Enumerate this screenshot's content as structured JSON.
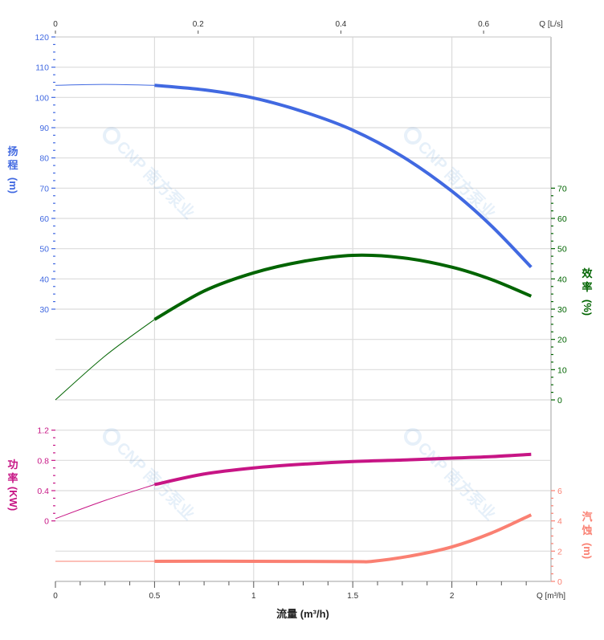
{
  "chart_data": {
    "type": "line",
    "watermark": "CNP 南方泵业",
    "x": {
      "label": "流量 (m³/h)",
      "unit_label": "Q [m³/h]",
      "range": [
        0,
        2.5
      ],
      "ticks": [
        "0",
        "0.5",
        "1",
        "1.5",
        "2"
      ],
      "tick_values": [
        0,
        0.5,
        1,
        1.5,
        2
      ]
    },
    "x_top": {
      "unit_label": "Q [L/s]",
      "ticks": [
        "0",
        "0.2",
        "0.4",
        "0.6"
      ],
      "tick_values": [
        0,
        0.2,
        0.4,
        0.6
      ]
    },
    "grid": true,
    "series": [
      {
        "name": "扬程",
        "axis_label": [
          "扬",
          "程",
          "(m)"
        ],
        "color": "#4169e1",
        "ylim": [
          -60,
          120
        ],
        "ticks": [
          30,
          40,
          50,
          60,
          70,
          80,
          90,
          100,
          110,
          120
        ],
        "side": "left",
        "x": [
          0,
          0.25,
          0.5,
          0.75,
          1.0,
          1.25,
          1.5,
          1.75,
          2.0,
          2.2,
          2.4
        ],
        "y": [
          104,
          104.3,
          104,
          102.5,
          99.8,
          95.3,
          89.2,
          80.5,
          69,
          57.5,
          43.9
        ]
      },
      {
        "name": "效率",
        "axis_label": [
          "效",
          "率",
          "(%)"
        ],
        "color": "#006400",
        "ylim": [
          -60,
          120
        ],
        "ticks": [
          0,
          10,
          20,
          30,
          40,
          50,
          60,
          70
        ],
        "side": "right",
        "x": [
          0,
          0.25,
          0.5,
          0.75,
          1.0,
          1.25,
          1.5,
          1.75,
          2.0,
          2.2,
          2.4
        ],
        "y": [
          0,
          14.5,
          26.6,
          36,
          42,
          45.8,
          47.8,
          47,
          43.9,
          39.8,
          34.3
        ]
      },
      {
        "name": "功率",
        "axis_label": [
          "功",
          "率",
          "(KW)"
        ],
        "color": "#c71585",
        "ylim": [
          -0.8,
          6.4
        ],
        "ticks": [
          0,
          0.4,
          0.8,
          1.2
        ],
        "side": "left",
        "x": [
          0,
          0.25,
          0.5,
          0.75,
          1.0,
          1.25,
          1.5,
          1.75,
          2.0,
          2.2,
          2.4
        ],
        "y": [
          0.03,
          0.27,
          0.48,
          0.62,
          0.7,
          0.75,
          0.785,
          0.805,
          0.83,
          0.85,
          0.88
        ]
      },
      {
        "name": "汽蚀",
        "axis_label": [
          "汽",
          "蚀",
          "(m)"
        ],
        "color": "#fa8072",
        "ylim": [
          0,
          36
        ],
        "ticks": [
          0,
          2,
          4,
          6
        ],
        "side": "right",
        "x": [
          0,
          0.5,
          1.0,
          1.5,
          1.6,
          1.8,
          2.0,
          2.2,
          2.4
        ],
        "y": [
          1.33,
          1.33,
          1.33,
          1.31,
          1.33,
          1.7,
          2.28,
          3.2,
          4.4
        ]
      }
    ],
    "operating_range_start": 0.5
  }
}
